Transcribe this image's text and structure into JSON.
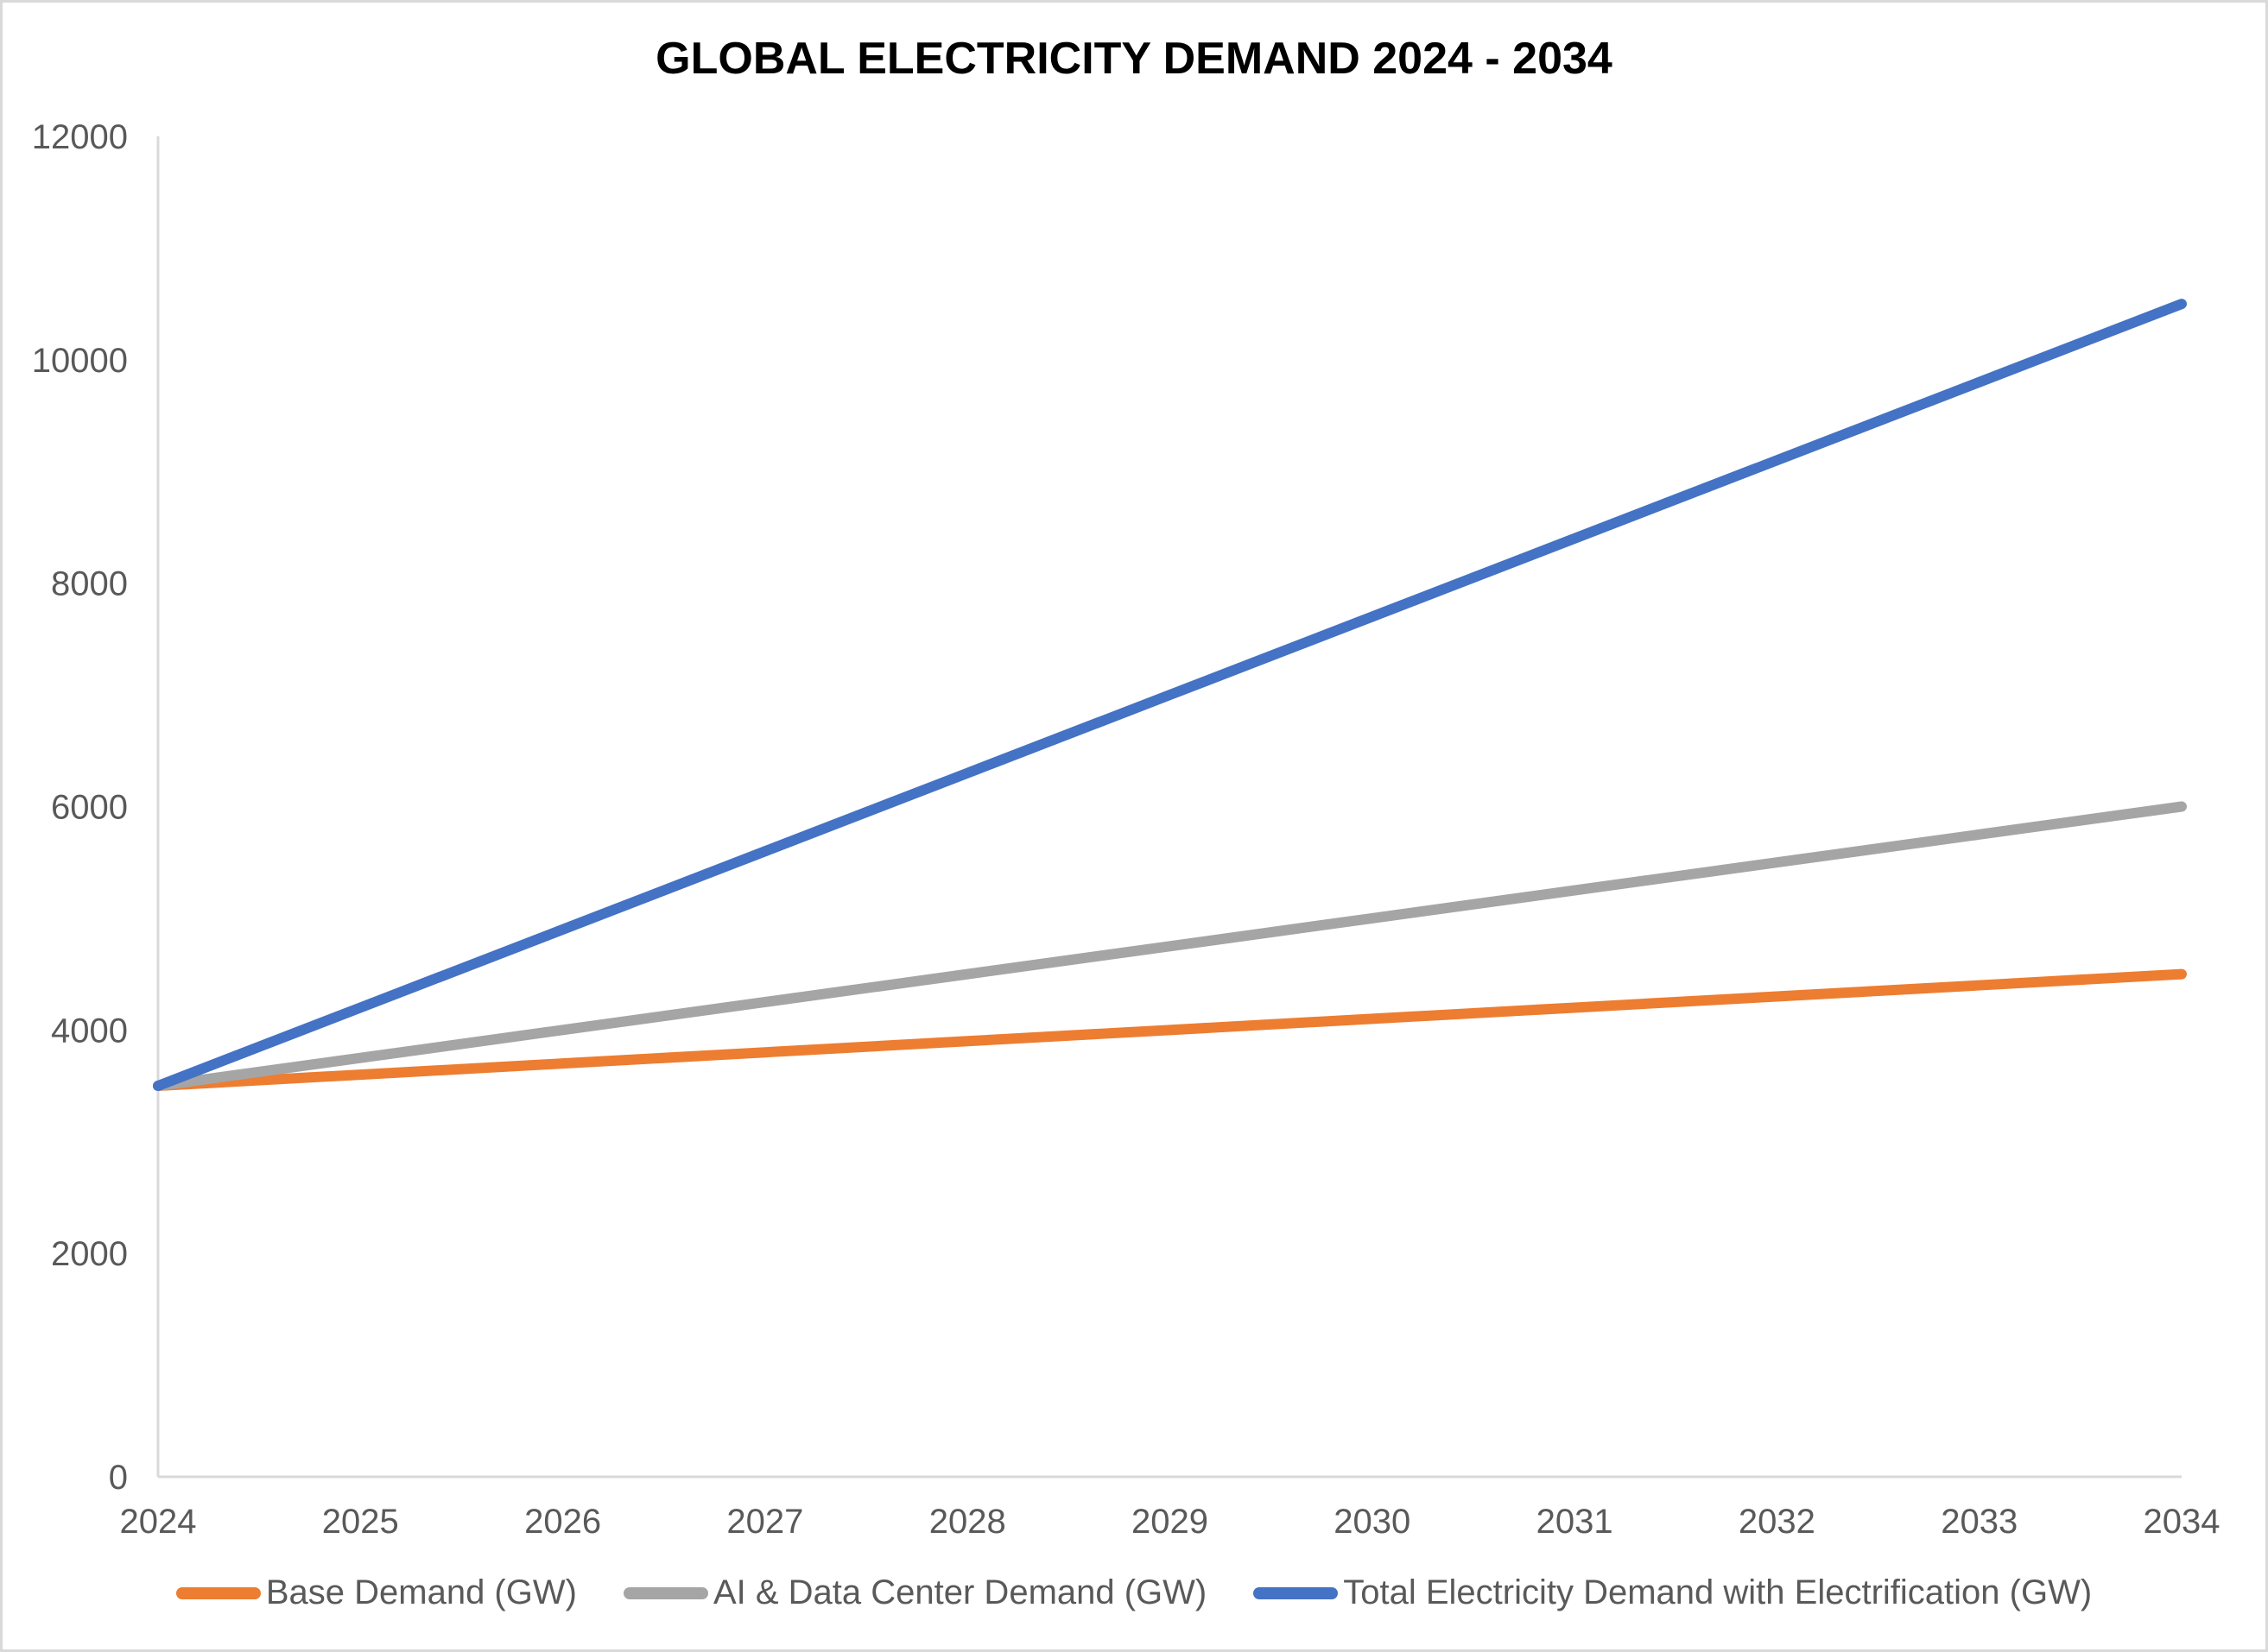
{
  "chart_data": {
    "type": "line",
    "title": "GLOBAL ELECTRICITY DEMAND 2024 - 2034",
    "xlabel": "",
    "ylabel": "",
    "x": [
      "2024",
      "2025",
      "2026",
      "2027",
      "2028",
      "2029",
      "2030",
      "2031",
      "2032",
      "2033",
      "2034"
    ],
    "yticks": [
      "0",
      "2000",
      "4000",
      "6000",
      "8000",
      "10000",
      "12000"
    ],
    "ylim": [
      0,
      12000
    ],
    "grid": false,
    "legend_position": "bottom",
    "series": [
      {
        "name": "Base Demand (GW)",
        "color": "#ED7D31",
        "values": [
          3500,
          3600,
          3700,
          3800,
          3900,
          4000,
          4100,
          4200,
          4300,
          4400,
          4500
        ]
      },
      {
        "name": "AI & Data Center Demand (GW)",
        "color": "#A5A5A5",
        "values": [
          3500,
          3750,
          4000,
          4250,
          4500,
          4750,
          5000,
          5250,
          5500,
          5750,
          6000
        ]
      },
      {
        "name": "Total Electricity Demand with Electrification (GW)",
        "color": "#4472C4",
        "values": [
          3500,
          4200,
          4900,
          5600,
          6300,
          7000,
          7700,
          8400,
          9100,
          9800,
          10500
        ]
      }
    ]
  }
}
